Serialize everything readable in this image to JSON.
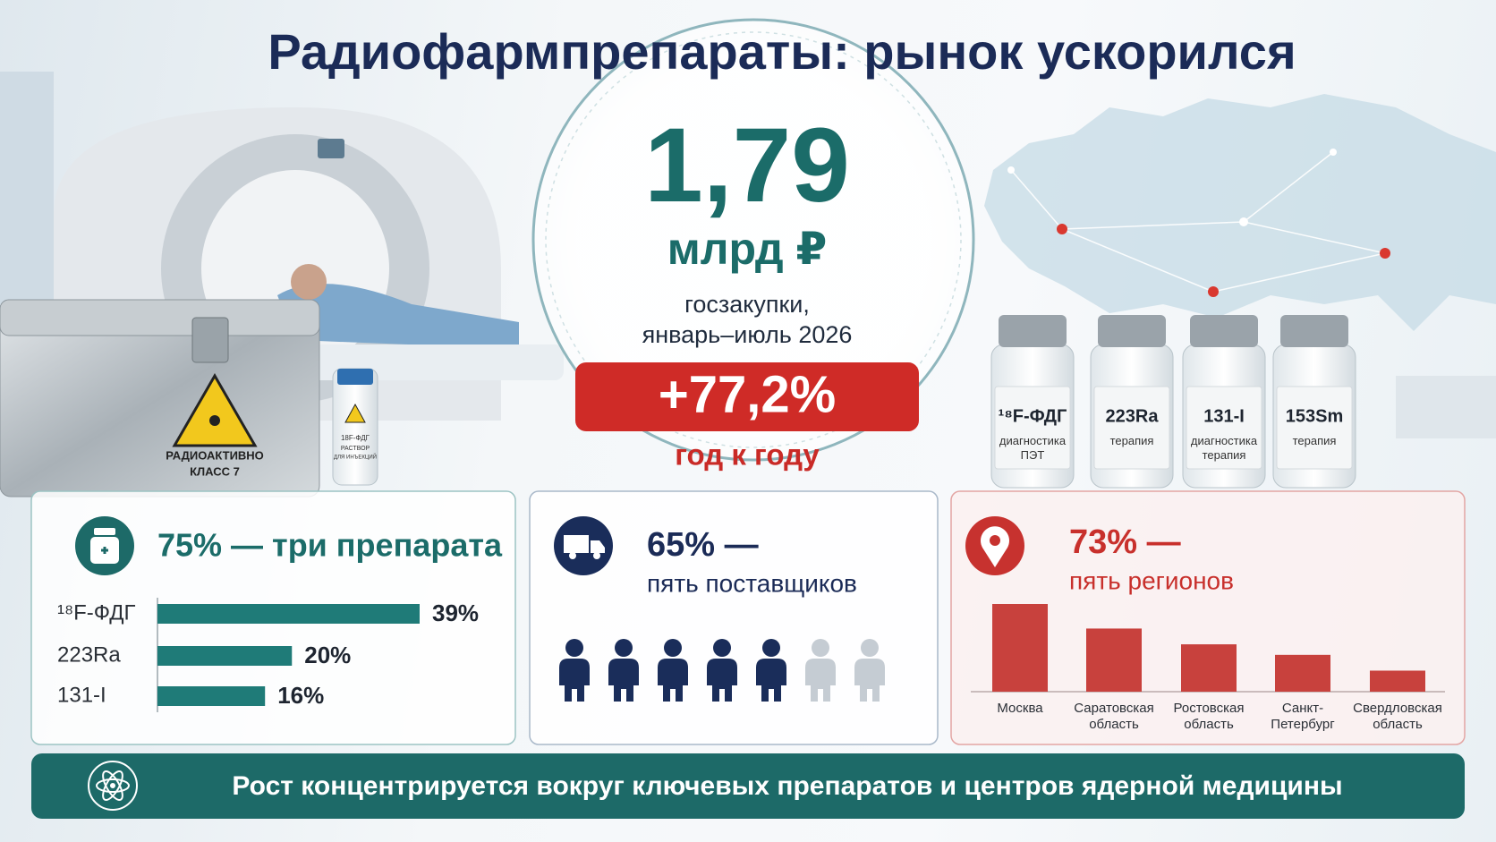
{
  "title": "Радиофармпрепараты: рынок ускорился",
  "headline": {
    "value": "1,79",
    "unit": "млрд ₽",
    "caption": [
      "госзакупки,",
      "январь–июль 2026"
    ],
    "growth": "+77,2%",
    "growth_caption": "год к году"
  },
  "container_label": [
    "РАДИОАКТИВНО",
    "КЛАСС 7"
  ],
  "small_vial_label": [
    "18F-ФДГ",
    "РАСТВОР",
    "ДЛЯ ИНЪЕКЦИЙ"
  ],
  "vials": [
    {
      "name": "¹⁸F-ФДГ",
      "use": "диагностика\nПЭТ"
    },
    {
      "name": "223Ra",
      "use": "терапия"
    },
    {
      "name": "131-I",
      "use": "диагностика\nтерапия"
    },
    {
      "name": "153Sm",
      "use": "терапия"
    }
  ],
  "panels": [
    {
      "heading": "75% — три препарата"
    },
    {
      "heading": "65% —",
      "subheading": "пять поставщиков",
      "people": {
        "filled": 5,
        "total": 7
      }
    },
    {
      "heading": "73% —",
      "subheading": "пять регионов"
    }
  ],
  "chart_data": [
    {
      "type": "bar",
      "orientation": "horizontal",
      "categories": [
        "¹⁸F-ФДГ",
        "223Ra",
        "131-I"
      ],
      "values": [
        39,
        20,
        16
      ],
      "value_labels": [
        "39%",
        "20%",
        "16%"
      ],
      "color": "#1f7b78"
    },
    {
      "type": "bar",
      "orientation": "vertical",
      "categories": [
        "Москва",
        "Саратовская\nобласть",
        "Ростовская\nобласть",
        "Санкт-\nПетербург",
        "Свердловская\nобласть"
      ],
      "values": [
        25,
        18,
        13.5,
        10.5,
        6
      ],
      "color": "#c8413d"
    }
  ],
  "footer": "Рост концентрируется вокруг ключевых препаратов и центров ядерной медицины"
}
